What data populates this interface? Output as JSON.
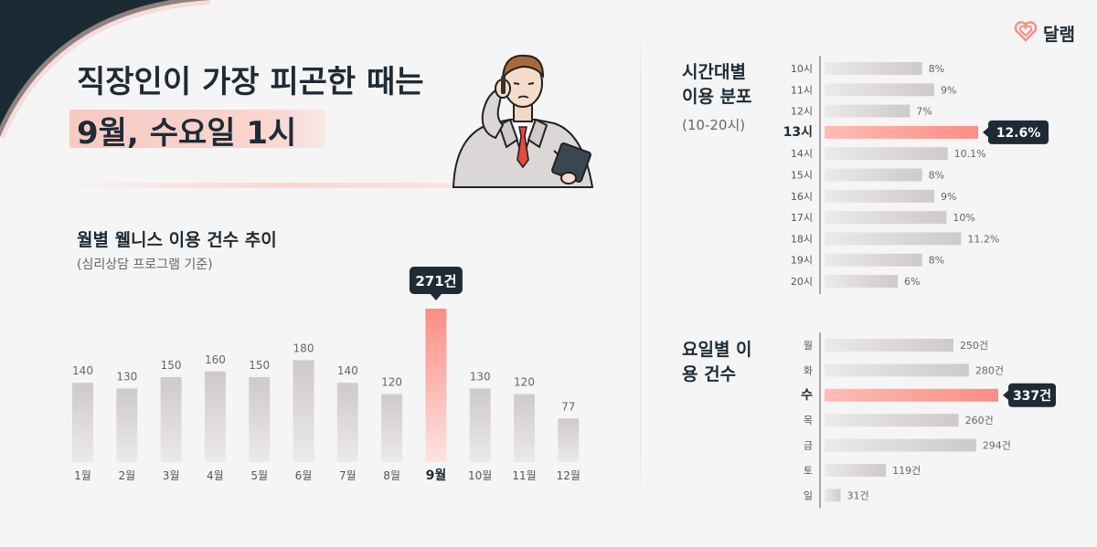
{
  "brand": {
    "name": "달램",
    "icon": "heart-logo-icon"
  },
  "title": {
    "line1": "직장인이 가장 피곤한 때는",
    "line2": "9월, 수요일 1시"
  },
  "colors": {
    "accent": "#fb8d83",
    "accent_light": "#fdbdb6",
    "bar_gray": "#d2cece",
    "dark": "#1e2b35",
    "corner": "#1c2a34"
  },
  "chart_data": [
    {
      "type": "bar",
      "title": "월별 웰니스 이용 건수 추이",
      "subtitle": "(심리상담 프로그램 기준)",
      "categories": [
        "1월",
        "2월",
        "3월",
        "4월",
        "5월",
        "6월",
        "7월",
        "8월",
        "9월",
        "10월",
        "11월",
        "12월"
      ],
      "values": [
        140,
        130,
        150,
        160,
        150,
        180,
        140,
        120,
        271,
        130,
        120,
        77
      ],
      "value_labels": [
        "140",
        "130",
        "150",
        "160",
        "150",
        "180",
        "140",
        "120",
        "271건",
        "130",
        "120",
        "77"
      ],
      "highlight_index": 8
    },
    {
      "type": "bar",
      "orientation": "horizontal",
      "title": "시간대별 이용 분포",
      "subtitle": "(10-20시)",
      "categories": [
        "10시",
        "11시",
        "12시",
        "13시",
        "14시",
        "15시",
        "16시",
        "17시",
        "18시",
        "19시",
        "20시"
      ],
      "values": [
        8,
        9,
        7,
        12.6,
        10.1,
        8,
        9,
        10,
        11.2,
        8,
        6
      ],
      "value_labels": [
        "8%",
        "9%",
        "7%",
        "12.6%",
        "10.1%",
        "8%",
        "9%",
        "10%",
        "11.2%",
        "8%",
        "6%"
      ],
      "highlight_index": 3
    },
    {
      "type": "bar",
      "orientation": "horizontal",
      "title": "요일별 이용 건수",
      "categories": [
        "월",
        "화",
        "수",
        "목",
        "금",
        "토",
        "일"
      ],
      "values": [
        250,
        280,
        337,
        260,
        294,
        119,
        31
      ],
      "value_labels": [
        "250건",
        "280건",
        "337건",
        "260건",
        "294건",
        "119건",
        "31건"
      ],
      "highlight_index": 2
    }
  ]
}
